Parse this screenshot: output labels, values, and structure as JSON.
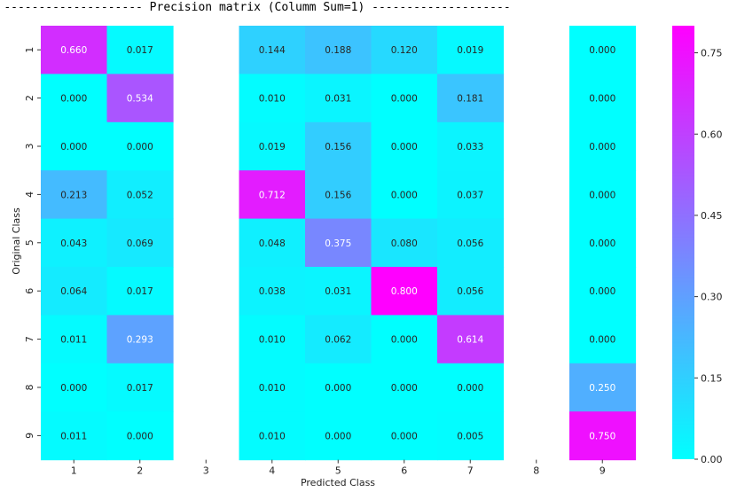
{
  "chart_data": {
    "type": "heatmap",
    "title": "-------------------- Precision matrix (Columm Sum=1) --------------------",
    "xlabel": "Predicted Class",
    "ylabel": "Original Class",
    "x_categories": [
      "1",
      "2",
      "3",
      "4",
      "5",
      "6",
      "7",
      "8",
      "9"
    ],
    "y_categories": [
      "1",
      "2",
      "3",
      "4",
      "5",
      "6",
      "7",
      "8",
      "9"
    ],
    "empty_columns": [
      "3",
      "8"
    ],
    "values": [
      [
        0.66,
        0.017,
        null,
        0.144,
        0.188,
        0.12,
        0.019,
        null,
        0.0
      ],
      [
        0.0,
        0.534,
        null,
        0.01,
        0.031,
        0.0,
        0.181,
        null,
        0.0
      ],
      [
        0.0,
        0.0,
        null,
        0.019,
        0.156,
        0.0,
        0.033,
        null,
        0.0
      ],
      [
        0.213,
        0.052,
        null,
        0.712,
        0.156,
        0.0,
        0.037,
        null,
        0.0
      ],
      [
        0.043,
        0.069,
        null,
        0.048,
        0.375,
        0.08,
        0.056,
        null,
        0.0
      ],
      [
        0.064,
        0.017,
        null,
        0.038,
        0.031,
        0.8,
        0.056,
        null,
        0.0
      ],
      [
        0.011,
        0.293,
        null,
        0.01,
        0.062,
        0.0,
        0.614,
        null,
        0.0
      ],
      [
        0.0,
        0.017,
        null,
        0.01,
        0.0,
        0.0,
        0.0,
        null,
        0.25
      ],
      [
        0.011,
        0.0,
        null,
        0.01,
        0.0,
        0.0,
        0.005,
        null,
        0.75
      ]
    ],
    "colormap": "cool",
    "color_low": "#00ffff",
    "color_high": "#ff00ff",
    "vmin": 0.0,
    "vmax": 0.8,
    "colorbar_ticks": [
      "0.00",
      "0.15",
      "0.30",
      "0.45",
      "0.60",
      "0.75"
    ],
    "colorbar_tick_values": [
      0.0,
      0.15,
      0.3,
      0.45,
      0.6,
      0.75
    ],
    "annotate_format": "3 decimals",
    "grid": false
  }
}
